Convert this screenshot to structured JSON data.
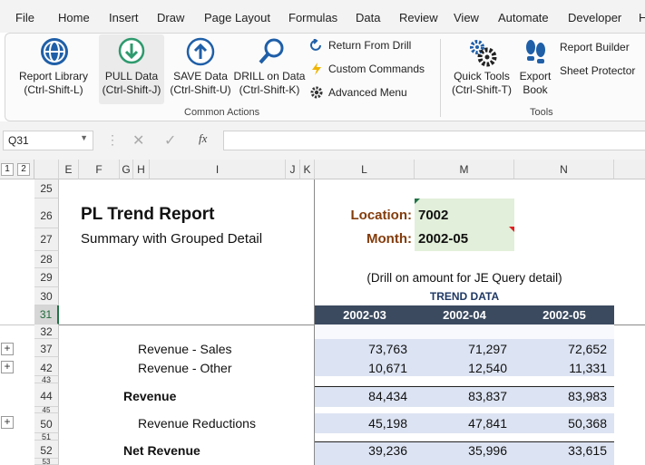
{
  "menu": [
    "File",
    "Home",
    "Insert",
    "Draw",
    "Page Layout",
    "Formulas",
    "Data",
    "Review",
    "View",
    "Automate",
    "Developer",
    "H"
  ],
  "ribbon": {
    "report_library": [
      "Report Library",
      "(Ctrl-Shift-L)"
    ],
    "pull_data": [
      "PULL Data",
      "(Ctrl-Shift-J)"
    ],
    "save_data": [
      "SAVE Data",
      "(Ctrl-Shift-U)"
    ],
    "drill_data": [
      "DRILL on Data",
      "(Ctrl-Shift-K)"
    ],
    "return_from_drill": "Return From Drill",
    "custom_commands": "Custom Commands",
    "advanced_menu": "Advanced Menu",
    "common_actions": "Common Actions",
    "quick_tools": [
      "Quick Tools",
      "(Ctrl-Shift-T)"
    ],
    "export_book": [
      "Export",
      "Book"
    ],
    "report_builder": "Report Builder",
    "sheet_protector": "Sheet Protector",
    "tools": "Tools"
  },
  "formula_bar": {
    "name_box": "Q31",
    "fx": "fx",
    "value": ""
  },
  "outline_levels": [
    "1",
    "2"
  ],
  "columns": [
    "E",
    "F",
    "G",
    "H",
    "I",
    "J",
    "K",
    "L",
    "M",
    "N"
  ],
  "rows": [
    "25",
    "26",
    "27",
    "28",
    "29",
    "30",
    "31",
    "32",
    "37",
    "42",
    "43",
    "44",
    "45",
    "50",
    "51",
    "52",
    "53"
  ],
  "report": {
    "title": "PL Trend Report",
    "subtitle": "Summary with Grouped Detail",
    "location_label": "Location:",
    "location_value": "7002",
    "month_label": "Month:",
    "month_value": "2002-05",
    "drill_note": "(Drill on amount for JE Query detail)",
    "trend_header": "TREND DATA",
    "periods": [
      "2002-03",
      "2002-04",
      "2002-05"
    ]
  },
  "lines": [
    {
      "label": "Revenue - Sales",
      "values": [
        "73,763",
        "71,297",
        "72,652"
      ]
    },
    {
      "label": "Revenue - Other",
      "values": [
        "10,671",
        "12,540",
        "11,331"
      ]
    },
    {
      "label": "Revenue",
      "values": [
        "84,434",
        "83,837",
        "83,983"
      ]
    },
    {
      "label": "Revenue Reductions",
      "values": [
        "45,198",
        "47,841",
        "50,368"
      ]
    },
    {
      "label": "Net Revenue",
      "values": [
        "39,236",
        "35,996",
        "33,615"
      ]
    }
  ],
  "colors": {
    "header_dark": "#3b4a5f",
    "band": "#dce3f2",
    "param_fill": "#e2efda",
    "label_brown": "#833c0b",
    "accent_blue": "#1f5fa8"
  }
}
